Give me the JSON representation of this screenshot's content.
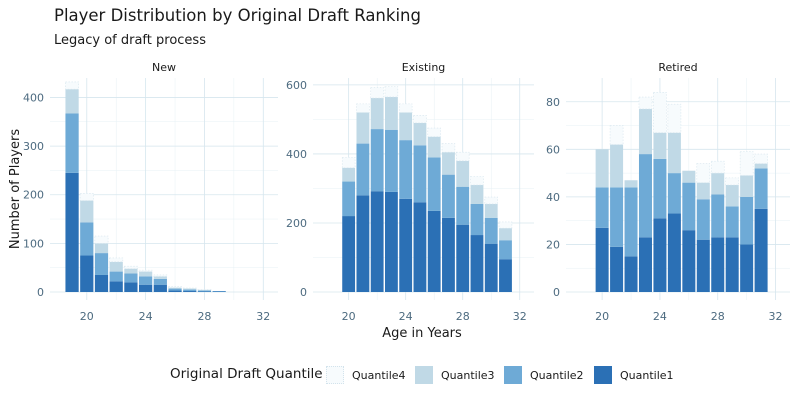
{
  "title": "Player Distribution by Original Draft Ranking",
  "subtitle": "Legacy of draft process",
  "chart_data": {
    "type": "bar",
    "stacked": true,
    "xlabel": "Age in Years",
    "ylabel": "Number of Players",
    "x_ticks": [
      "20",
      "24",
      "28",
      "32"
    ],
    "legend": {
      "title": "Original Draft Quantile",
      "position": "bottom"
    },
    "series_names": [
      "Quantile4",
      "Quantile3",
      "Quantile2",
      "Quantile1"
    ],
    "colors": {
      "Quantile1": "#2b70b5",
      "Quantile2": "#6eaad6",
      "Quantile3": "#c0d9e6",
      "Quantile4": "#f7fbfd"
    },
    "grid": true,
    "panels": [
      {
        "name": "New",
        "ylim": [
          0,
          440
        ],
        "y_ticks": [
          0,
          100,
          200,
          300,
          400
        ],
        "ages": [
          19,
          20,
          21,
          22,
          23,
          24,
          25,
          26,
          27,
          28,
          29
        ],
        "series": [
          {
            "name": "Quantile1",
            "values": [
              245,
              75,
              35,
              22,
              20,
              15,
              15,
              3,
              2,
              1,
              1
            ]
          },
          {
            "name": "Quantile2",
            "values": [
              122,
              68,
              45,
              20,
              18,
              17,
              12,
              4,
              3,
              2,
              1
            ]
          },
          {
            "name": "Quantile3",
            "values": [
              50,
              45,
              20,
              20,
              10,
              10,
              5,
              2,
              2,
              1,
              0
            ]
          },
          {
            "name": "Quantile4",
            "values": [
              15,
              15,
              15,
              8,
              5,
              3,
              3,
              2,
              1,
              1,
              0
            ]
          }
        ]
      },
      {
        "name": "Existing",
        "ylim": [
          0,
          620
        ],
        "y_ticks": [
          0,
          200,
          400,
          600
        ],
        "ages": [
          20,
          21,
          22,
          23,
          24,
          25,
          26,
          27,
          28,
          29,
          30,
          31
        ],
        "series": [
          {
            "name": "Quantile1",
            "values": [
              220,
              280,
              292,
              290,
              270,
              260,
              235,
              215,
              195,
              165,
              140,
              95
            ]
          },
          {
            "name": "Quantile2",
            "values": [
              100,
              150,
              180,
              180,
              170,
              165,
              155,
              125,
              110,
              90,
              75,
              55
            ]
          },
          {
            "name": "Quantile3",
            "values": [
              40,
              90,
              90,
              95,
              80,
              65,
              60,
              65,
              75,
              55,
              40,
              35
            ]
          },
          {
            "name": "Quantile4",
            "values": [
              30,
              25,
              30,
              30,
              25,
              22,
              25,
              25,
              25,
              25,
              20,
              18
            ]
          }
        ]
      },
      {
        "name": "Retired",
        "ylim": [
          0,
          90
        ],
        "y_ticks": [
          0,
          20,
          40,
          60,
          80
        ],
        "ages": [
          20,
          21,
          22,
          23,
          24,
          25,
          26,
          27,
          28,
          29,
          30,
          31
        ],
        "series": [
          {
            "name": "Quantile1",
            "values": [
              27,
              19,
              15,
              23,
              31,
              33,
              26,
              22,
              23,
              23,
              20,
              35
            ]
          },
          {
            "name": "Quantile2",
            "values": [
              17,
              25,
              29,
              35,
              25,
              17,
              20,
              17,
              18,
              13,
              20,
              17
            ]
          },
          {
            "name": "Quantile3",
            "values": [
              16,
              18,
              3,
              19,
              11,
              17,
              5,
              7,
              9,
              9,
              9,
              2
            ]
          },
          {
            "name": "Quantile4",
            "values": [
              0,
              8,
              0,
              5,
              17,
              12,
              0,
              8,
              5,
              3,
              10,
              4
            ]
          }
        ]
      }
    ]
  }
}
